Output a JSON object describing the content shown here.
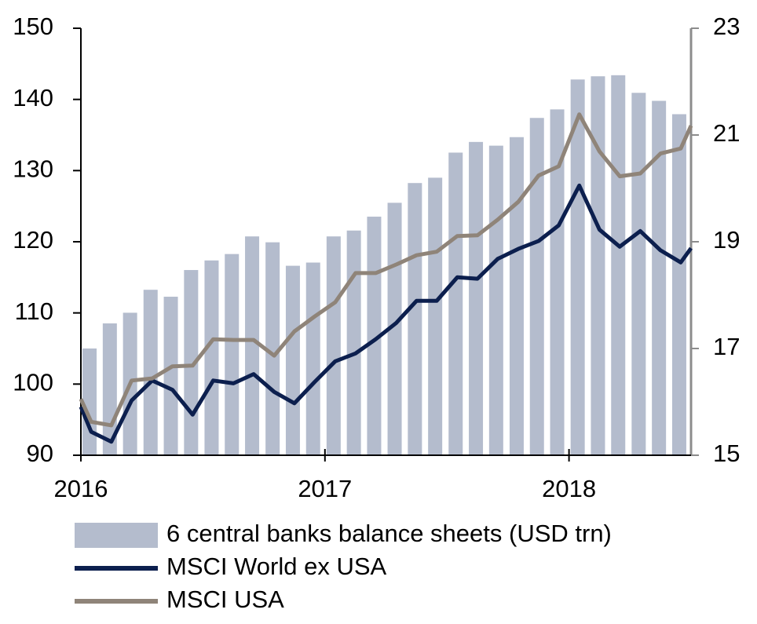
{
  "chart_data": {
    "type": "bar-line",
    "x": [
      2016,
      2016.042,
      2016.125,
      2016.208,
      2016.292,
      2016.375,
      2016.458,
      2016.542,
      2016.625,
      2016.708,
      2016.792,
      2016.875,
      2016.958,
      2017.042,
      2017.125,
      2017.208,
      2017.292,
      2017.375,
      2017.458,
      2017.542,
      2017.625,
      2017.708,
      2017.792,
      2017.875,
      2017.958,
      2018.042,
      2018.125,
      2018.208,
      2018.292,
      2018.375,
      2018.458,
      2018.5
    ],
    "xlim": [
      2016,
      2018.5
    ],
    "xticks": [
      2016,
      2017,
      2018
    ],
    "ylim": [
      90,
      150
    ],
    "yticks": [
      90,
      100,
      110,
      120,
      130,
      140,
      150
    ],
    "y2lim": [
      15,
      23
    ],
    "y2ticks": [
      15,
      17,
      19,
      21,
      23
    ],
    "series": [
      {
        "name": "6 central banks balance sheets (USD trn)",
        "type": "bar",
        "axis": "y2",
        "color": "#b4bccd",
        "values": [
          null,
          17.0,
          17.47,
          17.67,
          18.1,
          17.97,
          18.47,
          18.65,
          18.77,
          19.1,
          18.99,
          18.55,
          18.61,
          19.1,
          19.21,
          19.47,
          19.73,
          20.1,
          20.2,
          20.67,
          20.87,
          20.8,
          20.96,
          21.32,
          21.48,
          22.04,
          22.1,
          22.12,
          21.79,
          21.64,
          21.39,
          null
        ]
      },
      {
        "name": "MSCI World ex USA",
        "type": "line",
        "color": "#0c1f4e",
        "values": [
          96.8,
          93.3,
          91.9,
          97.7,
          100.5,
          99.2,
          95.7,
          100.5,
          100.1,
          101.4,
          98.9,
          97.3,
          100.3,
          103.2,
          104.3,
          106.3,
          108.6,
          111.7,
          111.7,
          115.0,
          114.8,
          117.6,
          119.0,
          120.1,
          122.3,
          127.9,
          121.7,
          119.3,
          121.5,
          118.8,
          117.1,
          119.1
        ]
      },
      {
        "name": "MSCI USA",
        "type": "line",
        "color": "#8f8479",
        "values": [
          97.9,
          94.7,
          94.2,
          100.5,
          100.8,
          102.5,
          102.6,
          106.3,
          106.2,
          106.2,
          104.0,
          107.4,
          109.5,
          111.5,
          115.6,
          115.6,
          116.8,
          118.1,
          118.6,
          120.8,
          120.9,
          123.1,
          125.6,
          129.3,
          130.6,
          137.9,
          132.7,
          129.2,
          129.6,
          132.4,
          133.1,
          136.3
        ]
      }
    ]
  }
}
